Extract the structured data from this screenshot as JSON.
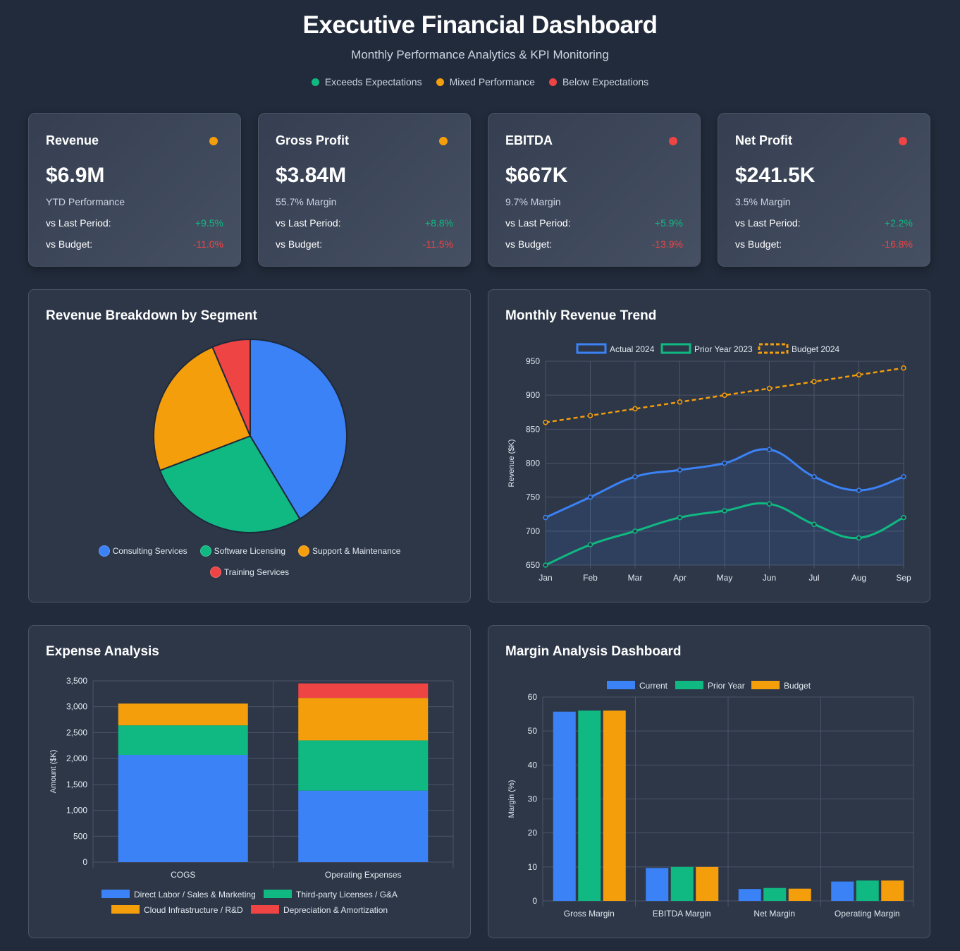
{
  "header": {
    "title": "Executive Financial Dashboard",
    "subtitle": "Monthly Performance Analytics & KPI Monitoring",
    "legend": [
      {
        "label": "Exceeds Expectations",
        "color": "#10b981"
      },
      {
        "label": "Mixed Performance",
        "color": "#f59e0b"
      },
      {
        "label": "Below Expectations",
        "color": "#ef4444"
      }
    ]
  },
  "kpis": [
    {
      "title": "Revenue",
      "status": "#f59e0b",
      "value": "$6.9M",
      "desc": "YTD Performance",
      "last_label": "vs Last Period:",
      "last": "+9.5%",
      "budget_label": "vs Budget:",
      "budget": "-11.0%"
    },
    {
      "title": "Gross Profit",
      "status": "#f59e0b",
      "value": "$3.84M",
      "desc": "55.7% Margin",
      "last_label": "vs Last Period:",
      "last": "+8.8%",
      "budget_label": "vs Budget:",
      "budget": "-11.5%"
    },
    {
      "title": "EBITDA",
      "status": "#ef4444",
      "value": "$667K",
      "desc": "9.7% Margin",
      "last_label": "vs Last Period:",
      "last": "+5.9%",
      "budget_label": "vs Budget:",
      "budget": "-13.9%"
    },
    {
      "title": "Net Profit",
      "status": "#ef4444",
      "value": "$241.5K",
      "desc": "3.5% Margin",
      "last_label": "vs Last Period:",
      "last": "+2.2%",
      "budget_label": "vs Budget:",
      "budget": "-16.8%"
    }
  ],
  "chart_data": [
    {
      "type": "pie",
      "title": "Revenue Breakdown by Segment",
      "categories": [
        "Consulting Services",
        "Software Licensing",
        "Support & Maintenance",
        "Training Services"
      ],
      "values": [
        41.4,
        27.8,
        24.4,
        6.4
      ],
      "colors": [
        "#3b82f6",
        "#10b981",
        "#f59e0b",
        "#ef4444"
      ],
      "legend": "bottom"
    },
    {
      "type": "line",
      "title": "Monthly Revenue Trend",
      "x": [
        "Jan",
        "Feb",
        "Mar",
        "Apr",
        "May",
        "Jun",
        "Jul",
        "Aug",
        "Sep"
      ],
      "ylabel": "Revenue ($K)",
      "ylim": [
        650,
        950
      ],
      "yticks": [
        650,
        700,
        750,
        800,
        850,
        900,
        950
      ],
      "series": [
        {
          "name": "Actual 2024",
          "color": "#3b82f6",
          "values": [
            720,
            750,
            780,
            790,
            800,
            820,
            780,
            760,
            780
          ],
          "fill": true
        },
        {
          "name": "Prior Year 2023",
          "color": "#10b981",
          "values": [
            650,
            680,
            700,
            720,
            730,
            740,
            710,
            690,
            720
          ]
        },
        {
          "name": "Budget 2024",
          "color": "#f59e0b",
          "dashed": true,
          "values": [
            860,
            870,
            880,
            890,
            900,
            910,
            920,
            930,
            940
          ]
        }
      ],
      "legend": "top"
    },
    {
      "type": "bar",
      "stacked": true,
      "title": "Expense Analysis",
      "categories": [
        "COGS",
        "Operating Expenses"
      ],
      "ylabel": "Amount ($K)",
      "ylim": [
        0,
        3500
      ],
      "yticks": [
        "0",
        "500",
        "1,000",
        "1,500",
        "2,000",
        "2,500",
        "3,000",
        "3,500"
      ],
      "series": [
        {
          "name": "Direct Labor / Sales & Marketing",
          "color": "#3b82f6",
          "values": [
            2070,
            1380
          ]
        },
        {
          "name": "Third-party Licenses / G&A",
          "color": "#10b981",
          "values": [
            570,
            970
          ]
        },
        {
          "name": "Cloud Infrastructure / R&D",
          "color": "#f59e0b",
          "values": [
            420,
            820
          ]
        },
        {
          "name": "Depreciation & Amortization",
          "color": "#ef4444",
          "values": [
            0,
            280
          ]
        }
      ],
      "legend": "bottom"
    },
    {
      "type": "bar",
      "title": "Margin Analysis Dashboard",
      "categories": [
        "Gross Margin",
        "EBITDA Margin",
        "Net Margin",
        "Operating Margin"
      ],
      "ylabel": "Margin (%)",
      "ylim": [
        0,
        60
      ],
      "yticks": [
        "0",
        "10",
        "20",
        "30",
        "40",
        "50",
        "60"
      ],
      "series": [
        {
          "name": "Current",
          "color": "#3b82f6",
          "values": [
            55.7,
            9.7,
            3.5,
            5.7
          ]
        },
        {
          "name": "Prior Year",
          "color": "#10b981",
          "values": [
            56,
            10,
            3.8,
            6
          ]
        },
        {
          "name": "Budget",
          "color": "#f59e0b",
          "values": [
            56,
            10,
            3.6,
            6
          ]
        }
      ],
      "legend": "top"
    }
  ]
}
